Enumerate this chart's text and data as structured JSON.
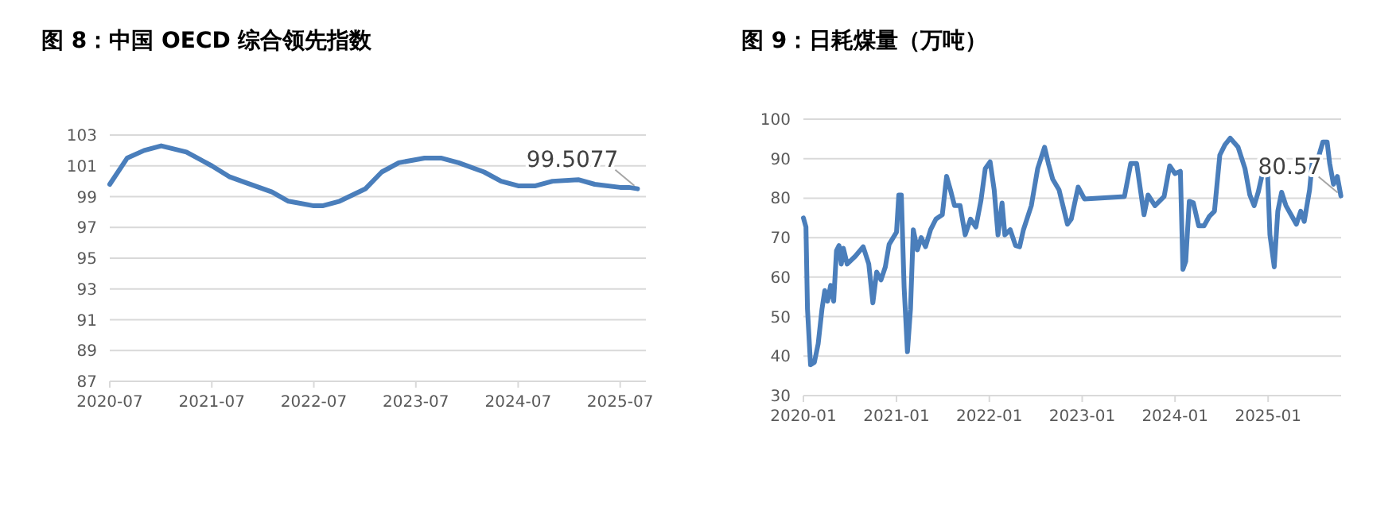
{
  "chart_data": [
    {
      "type": "line",
      "title": "图 8：中国 OECD 综合领先指数",
      "x": [
        "2020-07",
        "2020-09",
        "2020-11",
        "2021-01",
        "2021-04",
        "2021-07",
        "2021-09",
        "2021-11",
        "2022-02",
        "2022-04",
        "2022-07",
        "2022-08",
        "2022-10",
        "2023-01",
        "2023-03",
        "2023-05",
        "2023-07",
        "2023-08",
        "2023-10",
        "2023-12",
        "2024-03",
        "2024-05",
        "2024-07",
        "2024-09",
        "2024-11",
        "2025-02",
        "2025-04",
        "2025-07",
        "2025-08",
        "2025-09"
      ],
      "series": [
        {
          "color": "#4a7ebb",
          "values": [
            99.8,
            101.5,
            102.0,
            102.3,
            101.9,
            101.0,
            100.3,
            99.9,
            99.3,
            98.7,
            98.4,
            98.4,
            98.7,
            99.5,
            100.6,
            101.2,
            101.4,
            101.5,
            101.5,
            101.2,
            100.6,
            100.0,
            99.7,
            99.7,
            100.0,
            100.1,
            99.8,
            99.6,
            99.6,
            99.5077
          ]
        }
      ],
      "xlim": [
        "2020-07",
        "2025-10"
      ],
      "xticks": [
        "2020-07",
        "2021-07",
        "2022-07",
        "2023-07",
        "2024-07",
        "2025-07"
      ],
      "ylim": [
        87,
        103
      ],
      "yticks": [
        87,
        89,
        91,
        93,
        95,
        97,
        99,
        101,
        103
      ],
      "grid": "y",
      "marker": "none",
      "line_style": "solid",
      "annotations": [
        {
          "text": "99.5077",
          "x": "2025-09",
          "y": 99.5077
        }
      ]
    },
    {
      "type": "line",
      "title": "图 9：日耗煤量（万吨）",
      "x": [
        "2020-01-01",
        "2020-01-11",
        "2020-01-17",
        "2020-01-29",
        "2020-02-13",
        "2020-02-28",
        "2020-03-14",
        "2020-03-25",
        "2020-04-05",
        "2020-04-17",
        "2020-04-29",
        "2020-05-10",
        "2020-05-20",
        "2020-05-29",
        "2020-06-06",
        "2020-06-21",
        "2020-07-23",
        "2020-08-23",
        "2020-09-14",
        "2020-09-30",
        "2020-10-15",
        "2020-11-01",
        "2020-11-18",
        "2020-12-03",
        "2021-01-01",
        "2021-01-10",
        "2021-01-20",
        "2021-01-31",
        "2021-02-13",
        "2021-02-25",
        "2021-03-08",
        "2021-03-24",
        "2021-04-08",
        "2021-04-25",
        "2021-05-15",
        "2021-06-05",
        "2021-06-30",
        "2021-07-17",
        "2021-08-01",
        "2021-08-17",
        "2021-09-08",
        "2021-09-28",
        "2021-10-19",
        "2021-11-09",
        "2021-11-29",
        "2021-12-16",
        "2022-01-04",
        "2022-01-20",
        "2022-02-04",
        "2022-02-20",
        "2022-03-03",
        "2022-03-24",
        "2022-04-14",
        "2022-04-30",
        "2022-05-15",
        "2022-06-15",
        "2022-07-10",
        "2022-08-06",
        "2022-08-21",
        "2022-09-07",
        "2022-10-02",
        "2022-11-04",
        "2022-11-19",
        "2022-12-16",
        "2023-01-10",
        "2023-06-16",
        "2023-07-11",
        "2023-08-03",
        "2023-09-01",
        "2023-09-17",
        "2023-10-14",
        "2023-11-19",
        "2023-12-11",
        "2024-01-01",
        "2024-01-22",
        "2024-02-01",
        "2024-02-12",
        "2024-02-26",
        "2024-03-13",
        "2024-04-03",
        "2024-04-24",
        "2024-05-15",
        "2024-06-04",
        "2024-06-25",
        "2024-07-15",
        "2024-08-05",
        "2024-09-05",
        "2024-10-02",
        "2024-10-21",
        "2024-11-07",
        "2024-11-23",
        "2024-12-14",
        "2024-12-29",
        "2025-01-08",
        "2025-01-25",
        "2025-02-08",
        "2025-02-23",
        "2025-03-12",
        "2025-04-01",
        "2025-04-22",
        "2025-05-09",
        "2025-05-23",
        "2025-06-13",
        "2025-06-24",
        "2025-07-14",
        "2025-08-04",
        "2025-08-21",
        "2025-08-31",
        "2025-09-15",
        "2025-09-30",
        "2025-10-14"
      ],
      "series": [
        {
          "color": "#4a7ebb",
          "values": [
            75,
            72.7,
            51.9,
            37.8,
            38.4,
            43.1,
            51.9,
            56.6,
            53.9,
            57.9,
            53.9,
            66.7,
            68,
            63.3,
            67.3,
            63.3,
            65.3,
            67.7,
            63.3,
            53.5,
            61.3,
            59.3,
            62.6,
            68.3,
            71.4,
            80.8,
            80.8,
            57.3,
            41.1,
            51.9,
            72,
            66.9,
            70,
            67.7,
            72,
            74.7,
            75.8,
            85.5,
            82.1,
            78.1,
            78.1,
            70.7,
            74.7,
            72.7,
            79.4,
            87.5,
            89.2,
            82.1,
            70.7,
            78.8,
            70.7,
            72,
            68,
            67.7,
            72,
            78.1,
            87.5,
            92.9,
            88.8,
            84.8,
            82.1,
            73.4,
            74.7,
            82.8,
            79.8,
            80.4,
            88.8,
            88.8,
            75.8,
            80.8,
            78.1,
            80.4,
            88.2,
            86.2,
            86.8,
            62,
            64,
            79.2,
            78.8,
            73,
            73,
            75.4,
            76.7,
            90.9,
            93.5,
            95.2,
            92.9,
            87.5,
            80.8,
            78.1,
            81.5,
            87.5,
            87.5,
            70.7,
            62.6,
            76.7,
            81.5,
            78.1,
            75.8,
            73.4,
            76.7,
            74.1,
            82.1,
            89.5,
            89.5,
            94.2,
            94.2,
            88.8,
            83.5,
            85.5,
            80.57
          ]
        }
      ],
      "xlim": [
        "2020-01-01",
        "2025-10-15"
      ],
      "xticks": [
        "2020-01",
        "2021-01",
        "2022-01",
        "2023-01",
        "2024-01",
        "2025-01"
      ],
      "ylim": [
        30,
        100
      ],
      "yticks": [
        30,
        40,
        50,
        60,
        70,
        80,
        90,
        100
      ],
      "grid": "y",
      "marker": "none",
      "line_style": "solid",
      "annotations": [
        {
          "text": "80.57",
          "x": "2025-10-14",
          "y": 80.57
        }
      ]
    }
  ]
}
